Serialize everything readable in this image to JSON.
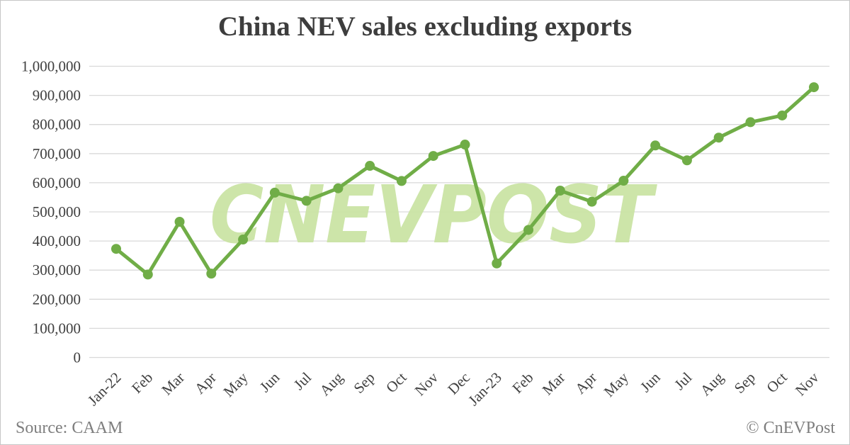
{
  "frame": {
    "title": "China NEV sales excluding exports"
  },
  "watermark": {
    "text": "CNEVPOST",
    "color": "#c9e3a2"
  },
  "footer": {
    "source": "Source: CAAM",
    "credit": "© CnEVPost"
  },
  "colors": {
    "series_line": "#70ad47",
    "marker": "#70ad47",
    "gridline": "#d9d9d9",
    "tick_label": "#404040",
    "title_text": "#3d3d3d",
    "footer_text": "#7e7e7e",
    "page_border": "#c6c6c6"
  },
  "chart_data": {
    "type": "line",
    "title": "China NEV sales excluding exports",
    "series_name": "China NEV sales excluding exports",
    "categories": [
      "Jan-22",
      "Feb",
      "Mar",
      "Apr",
      "May",
      "Jun",
      "Jul",
      "Aug",
      "Sep",
      "Oct",
      "Nov",
      "Dec",
      "Jan-23",
      "Feb",
      "Mar",
      "Apr",
      "May",
      "Jun",
      "Jul",
      "Aug",
      "Sep",
      "Oct",
      "Nov"
    ],
    "values": [
      373000,
      285000,
      466000,
      288000,
      405000,
      566000,
      538000,
      581000,
      658000,
      606000,
      692000,
      731000,
      323000,
      438000,
      573000,
      535000,
      607000,
      728000,
      677000,
      755000,
      808000,
      831000,
      928000
    ],
    "xlabel": "",
    "ylabel": "",
    "ylim": [
      0,
      1000000
    ],
    "ytick_interval": 100000,
    "ytick_labels": [
      "0",
      "100,000",
      "200,000",
      "300,000",
      "400,000",
      "500,000",
      "600,000",
      "700,000",
      "800,000",
      "900,000",
      "1,000,000"
    ],
    "grid": true,
    "legend": "none",
    "marker": "circle"
  }
}
